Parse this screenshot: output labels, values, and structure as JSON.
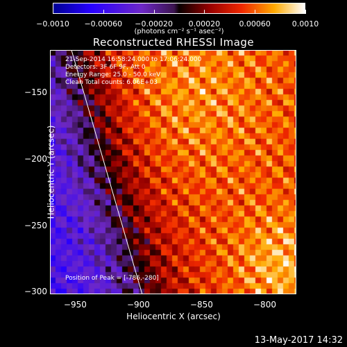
{
  "colorbar": {
    "ticks": [
      "-0.0010",
      "-0.00060",
      "-0.00020",
      "0.00020",
      "0.00060",
      "0.0010"
    ],
    "units_label": "(photons cm⁻² s⁻¹ asec⁻²)",
    "range": [
      -0.001,
      0.001
    ]
  },
  "chart_data": {
    "type": "heatmap",
    "title": "Reconstructed RHESSI Image",
    "xlabel": "Heliocentric X (arcsec)",
    "ylabel": "Heliocentric Y (arcsec)",
    "xlim": [
      -970,
      -775
    ],
    "ylim": [
      -302,
      -118
    ],
    "x_ticks": [
      -950,
      -900,
      -850,
      -800
    ],
    "y_ticks": [
      -150,
      -200,
      -250,
      -300
    ],
    "x_tick_labels": [
      "-950",
      "-900",
      "-850",
      "-800"
    ],
    "y_tick_labels": [
      "-150",
      "-200",
      "-250",
      "-300"
    ],
    "colormap": "hot-with-blue-negatives",
    "limb_line": [
      [
        -953,
        -118
      ],
      [
        -897,
        -302
      ]
    ],
    "peak": [
      -786,
      -280
    ]
  },
  "annotations": {
    "line1": "21-Sep-2014 16:58:24.000 to 17:06:24.000",
    "line2": "Detectors: 3F 6F 9F, Att 0",
    "line3": "Energy Range: 25.0 - 50.0 keV",
    "line4": "Clean     Total counts: 6.06E+03",
    "peak_label": "Position of Peak = [-786,-280]"
  },
  "footer": {
    "date": "13-May-2017 14:32"
  }
}
